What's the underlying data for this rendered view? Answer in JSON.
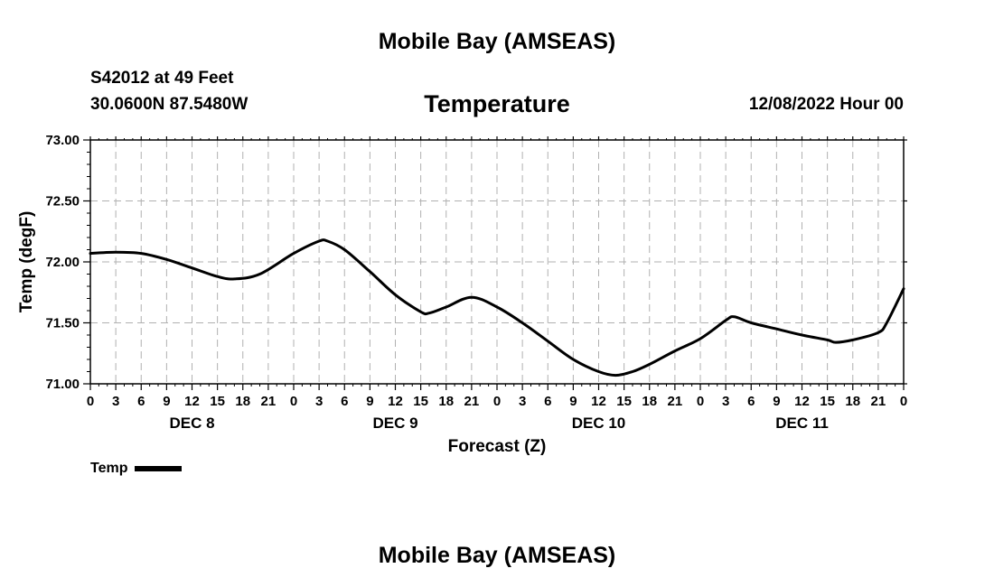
{
  "header": {
    "region_title": "Mobile Bay (AMSEAS)",
    "station": "S42012 at 49 Feet",
    "coords": "30.0600N  87.5480W",
    "date_label": "12/08/2022 Hour 00"
  },
  "footer": {
    "region_title": "Mobile Bay (AMSEAS)"
  },
  "chart_data": {
    "type": "line",
    "title": "Temperature",
    "xlabel": "Forecast (Z)",
    "ylabel": "Temp (degF)",
    "ylim": [
      71.0,
      73.0
    ],
    "yticks": [
      "73.00",
      "72.50",
      "72.00",
      "71.50",
      "71.00"
    ],
    "xlim": [
      0,
      96
    ],
    "xtick_labels": [
      "0",
      "3",
      "6",
      "9",
      "12",
      "15",
      "18",
      "21",
      "0",
      "3",
      "6",
      "9",
      "12",
      "15",
      "18",
      "21",
      "0",
      "3",
      "6",
      "9",
      "12",
      "15",
      "18",
      "21",
      "0",
      "3",
      "6",
      "9",
      "12",
      "15",
      "18",
      "21",
      "0"
    ],
    "day_labels": [
      {
        "label": "DEC 8",
        "x": 12
      },
      {
        "label": "DEC 9",
        "x": 36
      },
      {
        "label": "DEC 10",
        "x": 60
      },
      {
        "label": "DEC 11",
        "x": 84
      }
    ],
    "grid": true,
    "legend": "bottom-left",
    "series": [
      {
        "name": "Temp",
        "x": [
          0,
          3,
          6,
          9,
          12,
          15,
          17,
          20,
          24,
          27,
          28,
          30,
          33,
          36,
          39,
          40,
          42,
          45,
          48,
          51,
          54,
          57,
          60,
          62,
          64,
          66,
          69,
          72,
          75,
          76,
          78,
          81,
          84,
          87,
          88,
          90,
          93,
          94,
          96
        ],
        "y": [
          72.07,
          72.08,
          72.07,
          72.02,
          71.95,
          71.88,
          71.86,
          71.9,
          72.07,
          72.17,
          72.17,
          72.1,
          71.92,
          71.73,
          71.59,
          71.58,
          71.63,
          71.71,
          71.63,
          71.5,
          71.35,
          71.2,
          71.1,
          71.07,
          71.1,
          71.16,
          71.27,
          71.37,
          71.52,
          71.55,
          71.5,
          71.45,
          71.4,
          71.36,
          71.34,
          71.36,
          71.42,
          71.5,
          71.78
        ]
      }
    ]
  }
}
